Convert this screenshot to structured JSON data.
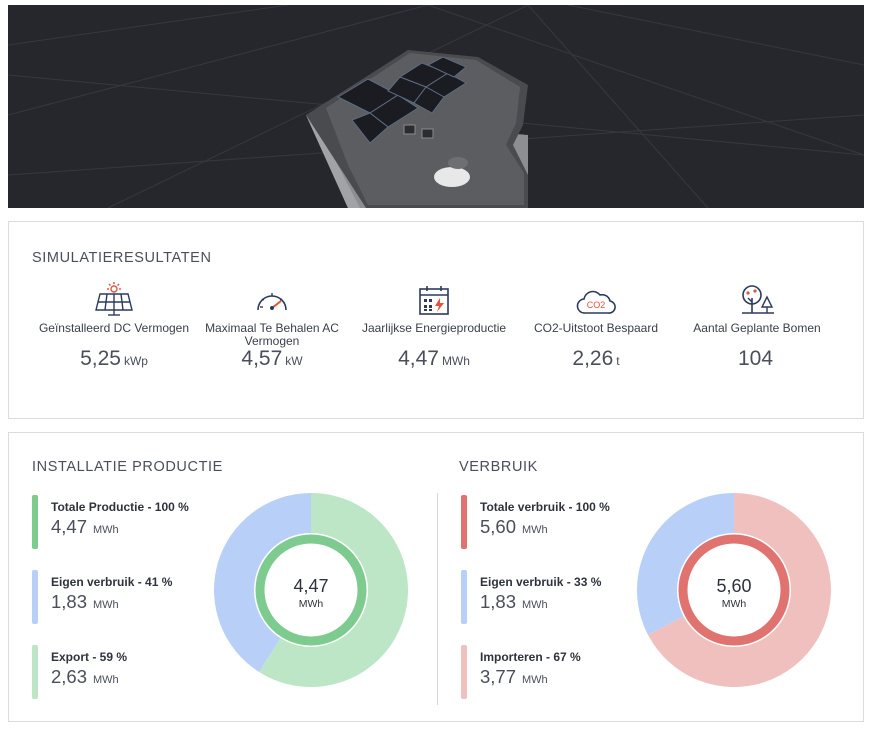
{
  "simulation": {
    "title": "SIMULATIERESULTATEN",
    "metrics": [
      {
        "label": "Geïnstalleerd DC Vermogen",
        "value": "5,25",
        "unit": "kWp",
        "icon": "solar-panel-icon"
      },
      {
        "label": "Maximaal Te Behalen AC Vermogen",
        "value": "4,57",
        "unit": "kW",
        "icon": "gauge-icon"
      },
      {
        "label": "Jaarlijkse Energieproductie",
        "value": "4,47",
        "unit": "MWh",
        "icon": "calendar-energy-icon"
      },
      {
        "label": "CO2-Uitstoot Bespaard",
        "value": "2,26",
        "unit": "t",
        "icon": "co2-cloud-icon"
      },
      {
        "label": "Aantal Geplante Bomen",
        "value": "104",
        "unit": "",
        "icon": "trees-icon"
      }
    ],
    "co2_icon_text": "CO2"
  },
  "production": {
    "title": "INSTALLATIE PRODUCTIE",
    "items": [
      {
        "label": "Totale Productie - 100 %",
        "value": "4,47",
        "unit": "MWh",
        "color": "#7ecb8f"
      },
      {
        "label": "Eigen verbruik - 41 %",
        "value": "1,83",
        "unit": "MWh",
        "color": "#b8d0f7"
      },
      {
        "label": "Export - 59 %",
        "value": "2,63",
        "unit": "MWh",
        "color": "#bce6c6"
      }
    ],
    "center_value": "4,47",
    "center_unit": "MWh"
  },
  "consumption": {
    "title": "VERBRUIK",
    "items": [
      {
        "label": "Totale verbruik - 100 %",
        "value": "5,60",
        "unit": "MWh",
        "color": "#e0736f"
      },
      {
        "label": "Eigen verbruik - 33 %",
        "value": "1,83",
        "unit": "MWh",
        "color": "#b8d0f7"
      },
      {
        "label": "Importeren - 67 %",
        "value": "3,77",
        "unit": "MWh",
        "color": "#f0c0bf"
      }
    ],
    "center_value": "5,60",
    "center_unit": "MWh"
  },
  "chart_data": [
    {
      "type": "pie",
      "title": "INSTALLATIE PRODUCTIE",
      "categories": [
        "Eigen verbruik",
        "Export"
      ],
      "values": [
        1.83,
        2.63
      ],
      "percentages": [
        41,
        59
      ],
      "total": 4.47,
      "unit": "MWh",
      "colors": [
        "#b8d0f7",
        "#bce6c6"
      ],
      "ring_color": "#7ecb8f"
    },
    {
      "type": "pie",
      "title": "VERBRUIK",
      "categories": [
        "Eigen verbruik",
        "Importeren"
      ],
      "values": [
        1.83,
        3.77
      ],
      "percentages": [
        33,
        67
      ],
      "total": 5.6,
      "unit": "MWh",
      "colors": [
        "#b8d0f7",
        "#f0c0bf"
      ],
      "ring_color": "#e0736f"
    }
  ]
}
